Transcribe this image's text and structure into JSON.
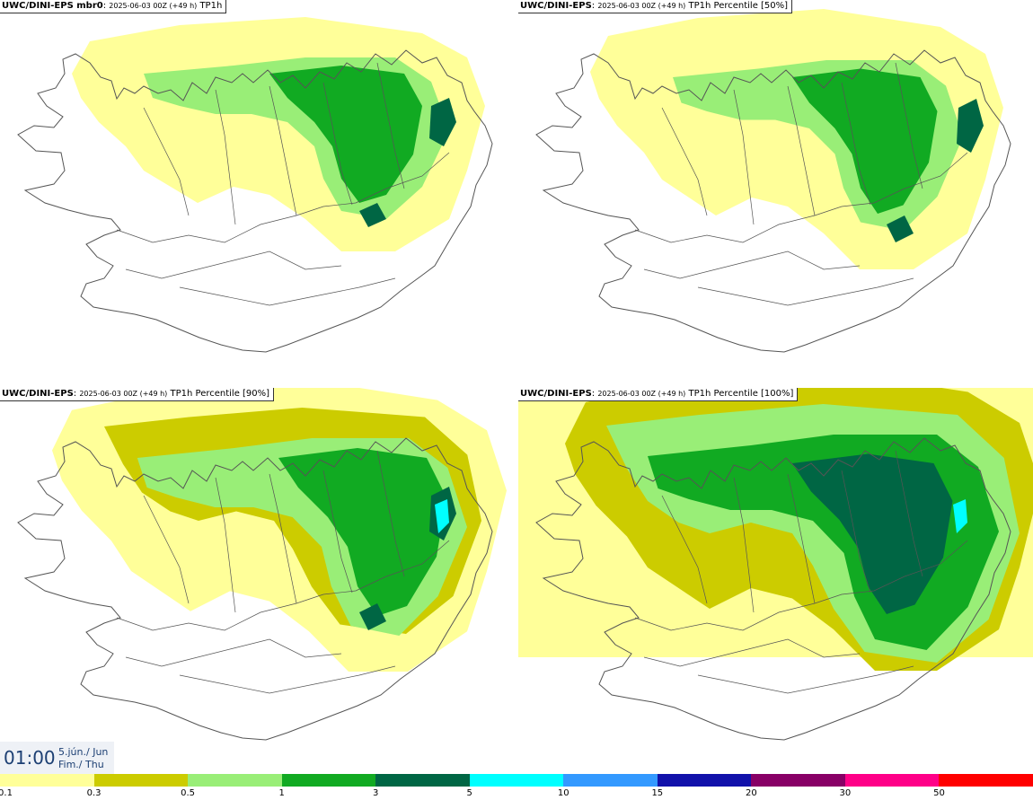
{
  "panels": [
    {
      "model": "UWC/DINI-EPS mbr0",
      "info": "2025-06-03 00Z (+49 h)",
      "field": "TP1h",
      "intensity": 1
    },
    {
      "model": "UWC/DINI-EPS",
      "info": "2025-06-03 00Z (+49 h)",
      "field": "TP1h Percentile [50%]",
      "intensity": 1
    },
    {
      "model": "UWC/DINI-EPS",
      "info": "2025-06-03 00Z (+49 h)",
      "field": "TP1h Percentile [90%]",
      "intensity": 2
    },
    {
      "model": "UWC/DINI-EPS",
      "info": "2025-06-03 00Z (+49 h)",
      "field": "TP1h Percentile [100%]",
      "intensity": 3
    }
  ],
  "time": {
    "clock": "01:00",
    "date_line1": "5.jún./ Jun",
    "date_line2": "Fim./ Thu"
  },
  "legend": {
    "colors": [
      "#ffff99",
      "#cccc00",
      "#99ee77",
      "#11aa22",
      "#006644",
      "#00ffff",
      "#3399ff",
      "#1111aa",
      "#880066",
      "#ff0088",
      "#ff0000"
    ],
    "ticks": [
      "0.1",
      "0.3",
      "0.5",
      "1",
      "3",
      "5",
      "10",
      "15",
      "20",
      "30",
      "50"
    ]
  },
  "colors": {
    "light_yellow": "#ffff99",
    "olive": "#cccc00",
    "light_green": "#99ee77",
    "green": "#11aa22",
    "dark_green": "#006644",
    "cyan": "#00ffff",
    "coast": "#555555"
  }
}
